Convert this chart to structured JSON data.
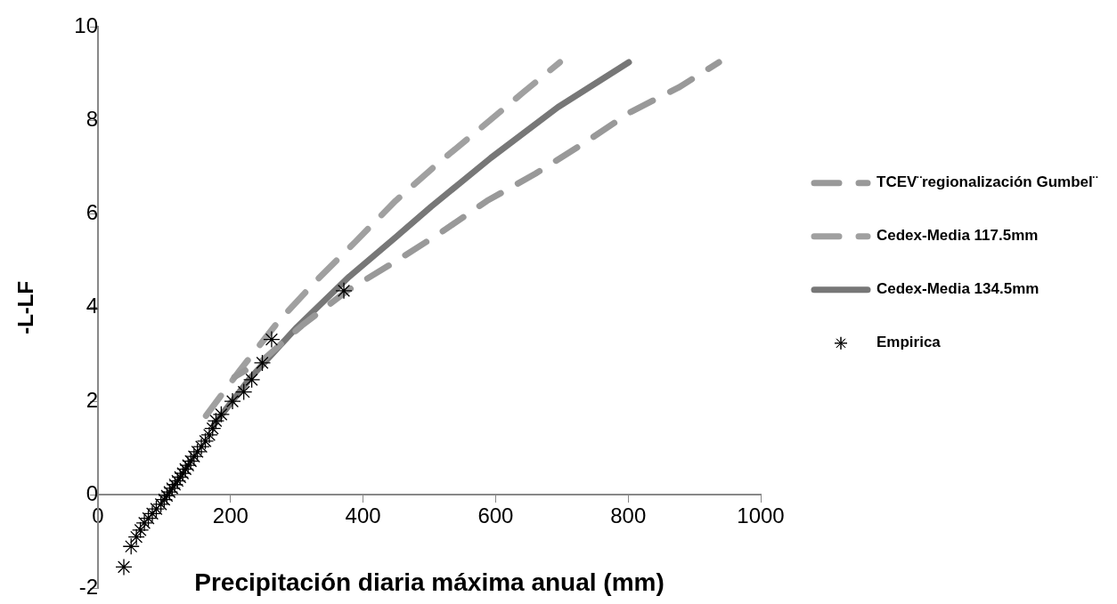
{
  "chart_data": {
    "type": "line",
    "xlabel": "Precipitación diaria máxima anual (mm)",
    "ylabel": "-L-LF",
    "xlim": [
      0,
      1000
    ],
    "xticks": [
      0,
      200,
      400,
      600,
      800,
      1000
    ],
    "ylim": [
      -2,
      10
    ],
    "yticks": [
      -2,
      0,
      2,
      4,
      6,
      8,
      10
    ],
    "grid": false,
    "legend": "right",
    "series": [
      {
        "name": "TCEV¨regionalización Gumbel¨",
        "color": "#999999",
        "line_style": "dashed",
        "x": [
          206,
          247,
          308,
          376,
          446,
          515,
          587,
          660,
          732,
          804,
          876,
          937
        ],
        "values": [
          2.52,
          2.86,
          3.62,
          4.36,
          4.96,
          5.58,
          6.28,
          6.86,
          7.5,
          8.18,
          8.7,
          9.24
        ]
      },
      {
        "name": "Cedex-Media 117.5mm",
        "color": "#a0a0a0",
        "line_style": "dashed",
        "x": [
          154,
          214,
          272,
          327,
          388,
          449,
          513,
          578,
          642,
          697
        ],
        "values": [
          1.52,
          2.66,
          3.7,
          4.54,
          5.4,
          6.28,
          7.08,
          7.84,
          8.6,
          9.24
        ]
      },
      {
        "name": "Cedex-Media 134.5mm",
        "color": "#777777",
        "line_style": "solid",
        "x": [
          175,
          230,
          300,
          379,
          449,
          503,
          593,
          694,
          801
        ],
        "values": [
          1.5,
          2.5,
          3.58,
          4.66,
          5.5,
          6.16,
          7.2,
          8.28,
          9.24
        ]
      },
      {
        "name": "Empirica",
        "type": "scatter",
        "marker": "cross",
        "color": "#000000",
        "x": [
          39,
          50,
          58,
          64,
          70,
          76,
          82,
          88,
          95,
          100,
          104,
          108,
          112,
          116,
          120,
          124,
          128,
          132,
          136,
          140,
          145,
          150,
          156,
          162,
          168,
          173,
          178,
          186,
          203,
          220,
          232,
          248,
          262,
          371
        ],
        "values": [
          -1.54,
          -1.1,
          -0.9,
          -0.75,
          -0.6,
          -0.5,
          -0.4,
          -0.3,
          -0.2,
          -0.1,
          -0.02,
          0.06,
          0.14,
          0.22,
          0.3,
          0.38,
          0.46,
          0.55,
          0.63,
          0.72,
          0.82,
          0.92,
          1.03,
          1.15,
          1.28,
          1.42,
          1.58,
          1.72,
          2.0,
          2.2,
          2.46,
          2.82,
          3.32,
          4.36
        ]
      }
    ]
  }
}
